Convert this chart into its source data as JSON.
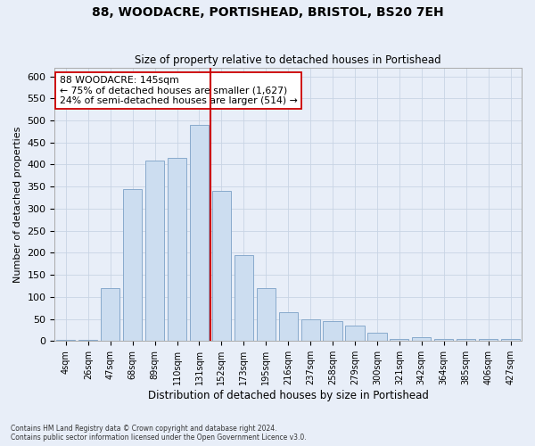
{
  "title": "88, WOODACRE, PORTISHEAD, BRISTOL, BS20 7EH",
  "subtitle": "Size of property relative to detached houses in Portishead",
  "xlabel": "Distribution of detached houses by size in Portishead",
  "ylabel": "Number of detached properties",
  "categories": [
    "4sqm",
    "26sqm",
    "47sqm",
    "68sqm",
    "89sqm",
    "110sqm",
    "131sqm",
    "152sqm",
    "173sqm",
    "195sqm",
    "216sqm",
    "237sqm",
    "258sqm",
    "279sqm",
    "300sqm",
    "321sqm",
    "342sqm",
    "364sqm",
    "385sqm",
    "406sqm",
    "427sqm"
  ],
  "values": [
    3,
    3,
    120,
    345,
    410,
    415,
    490,
    340,
    195,
    120,
    65,
    50,
    45,
    35,
    18,
    5,
    8,
    5,
    4,
    4,
    4
  ],
  "bar_color": "#ccddf0",
  "bar_edge_color": "#88aacc",
  "grid_color": "#c8d4e4",
  "background_color": "#e8eef8",
  "vline_color": "#cc0000",
  "annotation_text": "88 WOODACRE: 145sqm\n← 75% of detached houses are smaller (1,627)\n24% of semi-detached houses are larger (514) →",
  "annotation_box_color": "#ffffff",
  "annotation_box_edge_color": "#cc0000",
  "ylim": [
    0,
    620
  ],
  "yticks": [
    0,
    50,
    100,
    150,
    200,
    250,
    300,
    350,
    400,
    450,
    500,
    550,
    600
  ],
  "footer_line1": "Contains HM Land Registry data © Crown copyright and database right 2024.",
  "footer_line2": "Contains public sector information licensed under the Open Government Licence v3.0."
}
